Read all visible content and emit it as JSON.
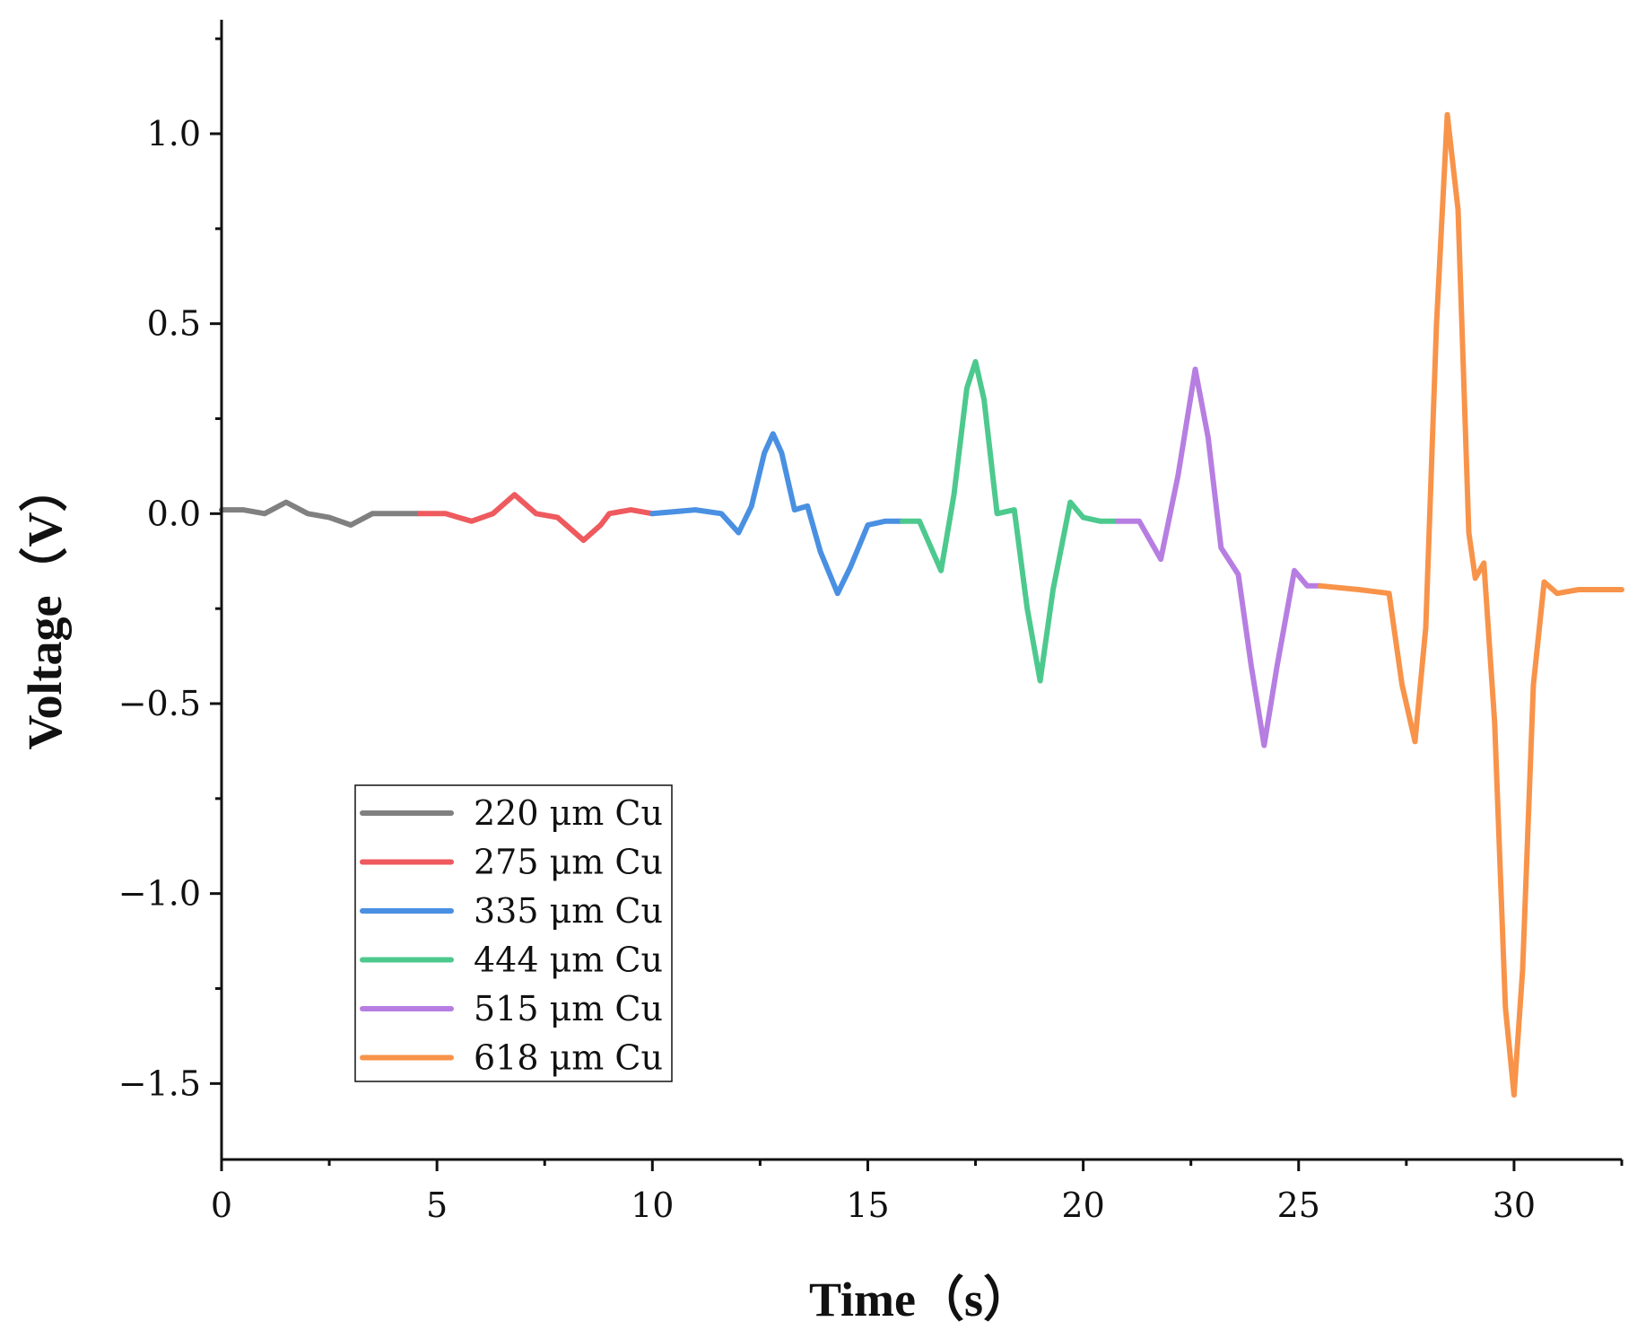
{
  "chart_data": {
    "type": "line",
    "title": "",
    "xlabel": "Time（s）",
    "ylabel": "Voltage（V）",
    "xlim": [
      0,
      32.5
    ],
    "ylim": [
      -1.7,
      1.3
    ],
    "xticks": [
      0,
      5,
      10,
      15,
      20,
      25,
      30
    ],
    "xtick_labels": [
      "0",
      "5",
      "10",
      "15",
      "20",
      "25",
      "30"
    ],
    "yticks": [
      1.0,
      0.5,
      0.0,
      -0.5,
      -1.0,
      -1.5
    ],
    "ytick_labels": [
      "1.0",
      "0.5",
      "0.0",
      "−0.5",
      "−1.0",
      "−1.5"
    ],
    "grid": false,
    "legend_position": "bottom-left",
    "series": [
      {
        "name": "220 μm Cu",
        "color": "#808080",
        "points": [
          [
            0,
            0.01
          ],
          [
            0.5,
            0.01
          ],
          [
            1.0,
            0.0
          ],
          [
            1.5,
            0.03
          ],
          [
            2.0,
            0.0
          ],
          [
            2.5,
            -0.01
          ],
          [
            3.0,
            -0.03
          ],
          [
            3.5,
            0.0
          ],
          [
            4.0,
            0.0
          ],
          [
            4.6,
            0.0
          ]
        ]
      },
      {
        "name": "275 μm Cu",
        "color": "#ee5a5e",
        "points": [
          [
            4.6,
            0.0
          ],
          [
            5.2,
            0.0
          ],
          [
            5.8,
            -0.02
          ],
          [
            6.3,
            0.0
          ],
          [
            6.8,
            0.05
          ],
          [
            7.3,
            0.0
          ],
          [
            7.8,
            -0.01
          ],
          [
            8.1,
            -0.04
          ],
          [
            8.4,
            -0.07
          ],
          [
            8.8,
            -0.03
          ],
          [
            9.0,
            0.0
          ],
          [
            9.5,
            0.01
          ],
          [
            10.0,
            0.0
          ]
        ]
      },
      {
        "name": "335 μm Cu",
        "color": "#4a90e2",
        "points": [
          [
            10.0,
            0.0
          ],
          [
            11.0,
            0.01
          ],
          [
            11.6,
            0.0
          ],
          [
            12.0,
            -0.05
          ],
          [
            12.3,
            0.02
          ],
          [
            12.6,
            0.16
          ],
          [
            12.8,
            0.21
          ],
          [
            13.0,
            0.16
          ],
          [
            13.3,
            0.01
          ],
          [
            13.6,
            0.02
          ],
          [
            13.9,
            -0.1
          ],
          [
            14.3,
            -0.21
          ],
          [
            14.6,
            -0.14
          ],
          [
            15.0,
            -0.03
          ],
          [
            15.4,
            -0.02
          ],
          [
            15.8,
            -0.02
          ]
        ]
      },
      {
        "name": "444 μm Cu",
        "color": "#4dc98e",
        "points": [
          [
            15.8,
            -0.02
          ],
          [
            16.2,
            -0.02
          ],
          [
            16.7,
            -0.15
          ],
          [
            17.0,
            0.05
          ],
          [
            17.3,
            0.33
          ],
          [
            17.5,
            0.4
          ],
          [
            17.7,
            0.3
          ],
          [
            18.0,
            0.0
          ],
          [
            18.4,
            0.01
          ],
          [
            18.7,
            -0.25
          ],
          [
            19.0,
            -0.44
          ],
          [
            19.3,
            -0.2
          ],
          [
            19.7,
            0.03
          ],
          [
            20.0,
            -0.01
          ],
          [
            20.4,
            -0.02
          ],
          [
            20.8,
            -0.02
          ]
        ]
      },
      {
        "name": "515 μm Cu",
        "color": "#b77ee2",
        "points": [
          [
            20.8,
            -0.02
          ],
          [
            21.3,
            -0.02
          ],
          [
            21.8,
            -0.12
          ],
          [
            22.2,
            0.1
          ],
          [
            22.6,
            0.38
          ],
          [
            22.9,
            0.2
          ],
          [
            23.2,
            -0.09
          ],
          [
            23.6,
            -0.16
          ],
          [
            23.9,
            -0.4
          ],
          [
            24.2,
            -0.61
          ],
          [
            24.5,
            -0.4
          ],
          [
            24.9,
            -0.15
          ],
          [
            25.2,
            -0.19
          ],
          [
            25.5,
            -0.19
          ]
        ]
      },
      {
        "name": "618 μm Cu",
        "color": "#f8934a",
        "points": [
          [
            25.5,
            -0.19
          ],
          [
            26.4,
            -0.2
          ],
          [
            27.1,
            -0.21
          ],
          [
            27.4,
            -0.45
          ],
          [
            27.7,
            -0.6
          ],
          [
            27.95,
            -0.3
          ],
          [
            28.2,
            0.5
          ],
          [
            28.45,
            1.05
          ],
          [
            28.7,
            0.8
          ],
          [
            28.95,
            -0.05
          ],
          [
            29.1,
            -0.17
          ],
          [
            29.3,
            -0.13
          ],
          [
            29.55,
            -0.55
          ],
          [
            29.8,
            -1.3
          ],
          [
            30.0,
            -1.53
          ],
          [
            30.2,
            -1.2
          ],
          [
            30.45,
            -0.45
          ],
          [
            30.7,
            -0.18
          ],
          [
            31.0,
            -0.21
          ],
          [
            31.5,
            -0.2
          ],
          [
            32.5,
            -0.2
          ]
        ]
      }
    ]
  }
}
